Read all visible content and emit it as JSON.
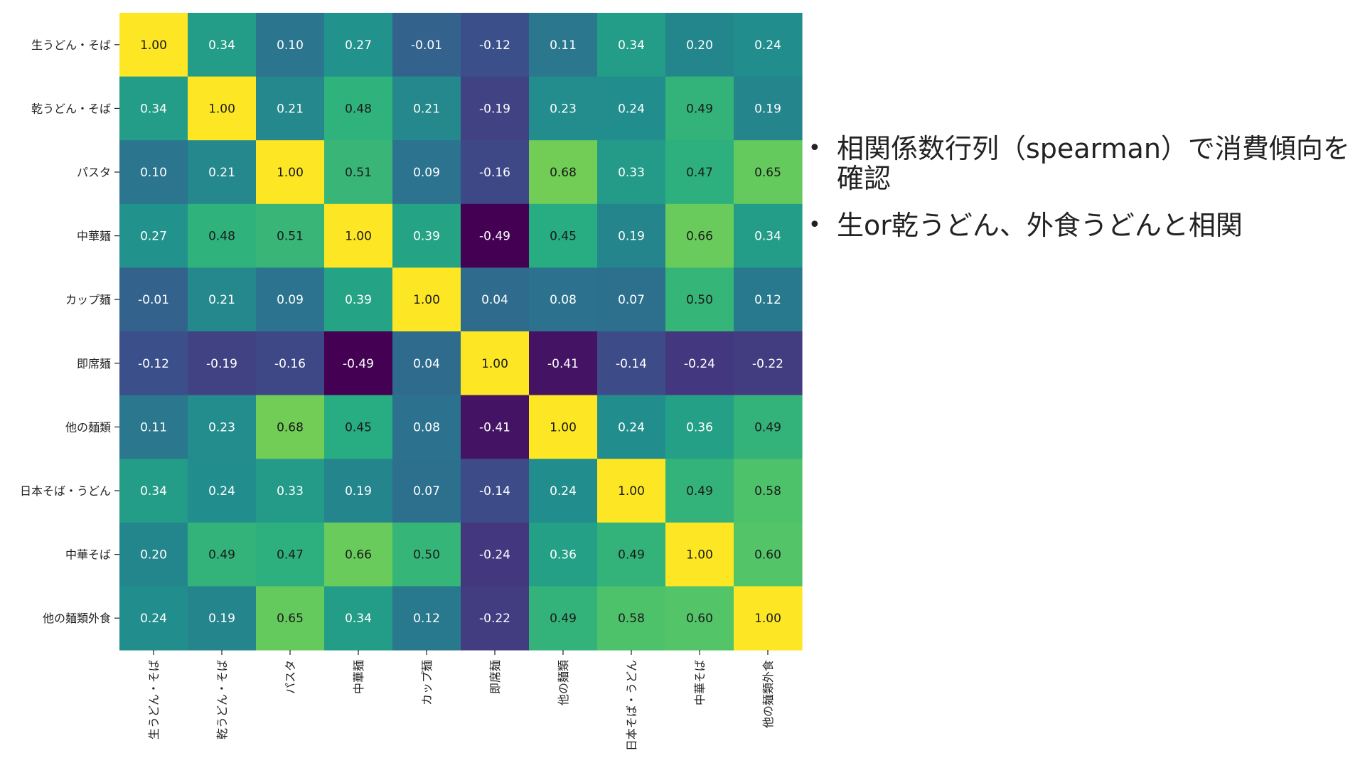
{
  "chart_data": {
    "type": "heatmap",
    "labels": [
      "生うどん・そば",
      "乾うどん・そば",
      "パスタ",
      "中華麺",
      "カップ麺",
      "即席麺",
      "他の麺類",
      "日本そば・うどん",
      "中華そば",
      "他の麺類外食"
    ],
    "values": [
      [
        1.0,
        0.34,
        0.1,
        0.27,
        -0.01,
        -0.12,
        0.11,
        0.34,
        0.2,
        0.24
      ],
      [
        0.34,
        1.0,
        0.21,
        0.48,
        0.21,
        -0.19,
        0.23,
        0.24,
        0.49,
        0.19
      ],
      [
        0.1,
        0.21,
        1.0,
        0.51,
        0.09,
        -0.16,
        0.68,
        0.33,
        0.47,
        0.65
      ],
      [
        0.27,
        0.48,
        0.51,
        1.0,
        0.39,
        -0.49,
        0.45,
        0.19,
        0.66,
        0.34
      ],
      [
        -0.01,
        0.21,
        0.09,
        0.39,
        1.0,
        0.04,
        0.08,
        0.07,
        0.5,
        0.12
      ],
      [
        -0.12,
        -0.19,
        -0.16,
        -0.49,
        0.04,
        1.0,
        -0.41,
        -0.14,
        -0.24,
        -0.22
      ],
      [
        0.11,
        0.23,
        0.68,
        0.45,
        0.08,
        -0.41,
        1.0,
        0.24,
        0.36,
        0.49
      ],
      [
        0.34,
        0.24,
        0.33,
        0.19,
        0.07,
        -0.14,
        0.24,
        1.0,
        0.49,
        0.58
      ],
      [
        0.2,
        0.49,
        0.47,
        0.66,
        0.5,
        -0.24,
        0.36,
        0.49,
        1.0,
        0.6
      ],
      [
        0.24,
        0.19,
        0.65,
        0.34,
        0.12,
        -0.22,
        0.49,
        0.58,
        0.6,
        1.0
      ]
    ],
    "colormap": "viridis",
    "value_range": [
      -0.49,
      1.0
    ],
    "value_format": "2 decimals",
    "x_tick_label_rotation": "vertical",
    "colors": {
      "dark_text": "#1a1a1a",
      "light_text": "#ffffff",
      "tick": "#222222"
    }
  },
  "notes": {
    "bullets": [
      "相関係数行列（spearman）で消費傾向を確認",
      "生or乾うどん、外食うどんと相関"
    ]
  }
}
